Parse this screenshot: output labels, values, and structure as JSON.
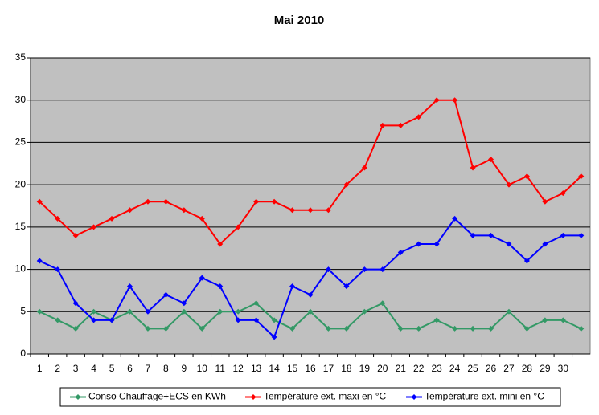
{
  "chart_data": {
    "type": "line",
    "title": "Mai 2010",
    "categories": [
      1,
      2,
      3,
      4,
      5,
      6,
      7,
      8,
      9,
      10,
      11,
      12,
      13,
      14,
      15,
      16,
      17,
      18,
      19,
      20,
      21,
      22,
      23,
      24,
      25,
      26,
      27,
      28,
      29,
      30,
      null
    ],
    "series": [
      {
        "name": "Conso Chauffage+ECS en KWh",
        "color": "#339966",
        "values": [
          5,
          4,
          3,
          5,
          4,
          5,
          3,
          3,
          5,
          3,
          5,
          5,
          6,
          4,
          3,
          5,
          3,
          3,
          5,
          6,
          3,
          3,
          4,
          3,
          3,
          3,
          5,
          3,
          4,
          4,
          3
        ]
      },
      {
        "name": "Température ext. maxi en °C",
        "color": "#ff0000",
        "values": [
          18,
          16,
          14,
          15,
          16,
          17,
          18,
          18,
          17,
          16,
          13,
          15,
          18,
          18,
          17,
          17,
          17,
          20,
          22,
          27,
          27,
          28,
          30,
          30,
          22,
          23,
          20,
          21,
          18,
          19,
          21
        ]
      },
      {
        "name": "Température ext. mini en °C",
        "color": "#0000ff",
        "values": [
          11,
          10,
          6,
          4,
          4,
          8,
          5,
          7,
          6,
          9,
          8,
          4,
          4,
          2,
          8,
          7,
          10,
          8,
          10,
          10,
          12,
          13,
          13,
          16,
          14,
          14,
          13,
          11,
          13,
          14,
          14
        ]
      }
    ],
    "ylim": [
      0,
      35
    ],
    "yticks": [
      0,
      5,
      10,
      15,
      20,
      25,
      30,
      35
    ],
    "grid": true,
    "legend": "bottom"
  }
}
